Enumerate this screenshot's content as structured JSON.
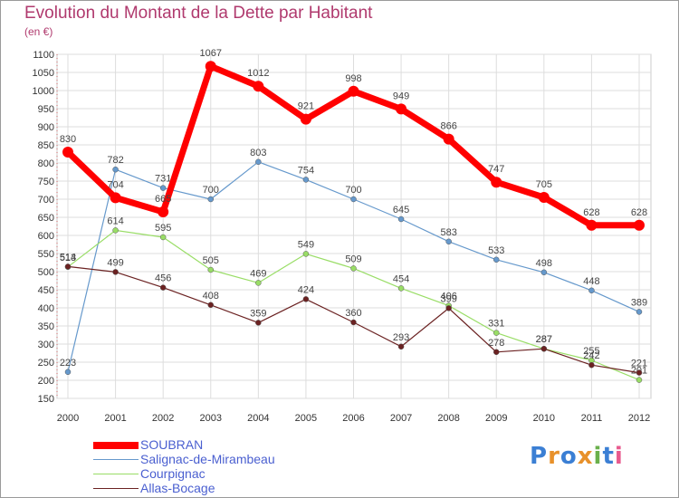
{
  "title": "Evolution du Montant de la Dette par Habitant",
  "unit": "(en €)",
  "logo": {
    "text": "Proxiti",
    "colors": [
      "#3b7fd4",
      "#e8912a",
      "#3b7fd4",
      "#e8912a",
      "#6ab04c",
      "#3b7fd4",
      "#e85a8e"
    ]
  },
  "chart_data": {
    "type": "line",
    "title": "Evolution du Montant de la Dette par Habitant",
    "ylabel": "(en €)",
    "xlabel": "",
    "x": [
      "2000",
      "2001",
      "2002",
      "2003",
      "2004",
      "2005",
      "2006",
      "2007",
      "2008",
      "2009",
      "2010",
      "2011",
      "2012"
    ],
    "ylim": [
      150,
      1100
    ],
    "yticks": [
      150,
      200,
      250,
      300,
      350,
      400,
      450,
      500,
      550,
      600,
      650,
      700,
      750,
      800,
      850,
      900,
      950,
      1000,
      1050,
      1100
    ],
    "grid": true,
    "legend": "bottom-left",
    "series": [
      {
        "name": "SOUBRAN",
        "color": "#ff0000",
        "values": [
          830,
          704,
          665,
          1067,
          1012,
          921,
          998,
          949,
          866,
          747,
          705,
          628,
          628
        ],
        "width": 7,
        "marker": 6
      },
      {
        "name": "Salignac-de-Mirambeau",
        "color": "#6699cc",
        "values": [
          223,
          782,
          731,
          700,
          803,
          754,
          700,
          645,
          583,
          533,
          498,
          448,
          389
        ],
        "width": 1.2,
        "marker": 3
      },
      {
        "name": "Courpignac",
        "color": "#99dd66",
        "values": [
          513,
          614,
          595,
          505,
          469,
          549,
          509,
          454,
          406,
          331,
          287,
          255,
          201
        ],
        "width": 1.2,
        "marker": 3
      },
      {
        "name": "Allas-Bocage",
        "color": "#6b2222",
        "values": [
          514,
          499,
          456,
          408,
          359,
          424,
          360,
          293,
          399,
          278,
          287,
          242,
          221
        ],
        "width": 1.2,
        "marker": 3
      }
    ]
  }
}
